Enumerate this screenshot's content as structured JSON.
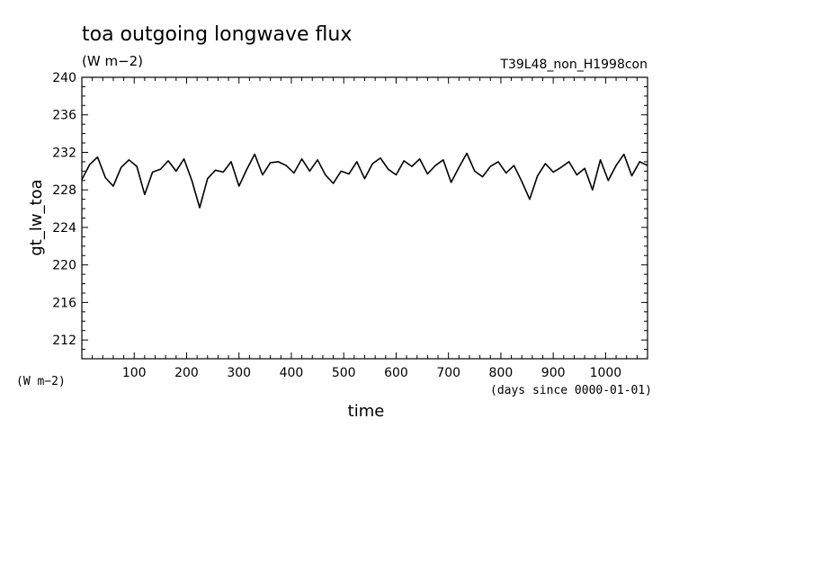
{
  "chart_data": {
    "type": "line",
    "title": "toa outgoing longwave flux",
    "units": "(W m−2)",
    "run_label": "T39L48_non_H1998con",
    "xlabel": "time",
    "x_units": "(days since 0000-01-01)",
    "ylabel": "gt_lw_toa",
    "y_units": "(W m−2)",
    "xlim": [
      0,
      1080
    ],
    "ylim": [
      210,
      240
    ],
    "x_ticks": [
      "100",
      "200",
      "300",
      "400",
      "500",
      "600",
      "700",
      "800",
      "900",
      "1000"
    ],
    "y_ticks": [
      "212",
      "216",
      "220",
      "224",
      "228",
      "232",
      "236",
      "240"
    ],
    "line_color": "#000000",
    "series": [
      {
        "x": [
          0,
          15,
          30,
          45,
          60,
          75,
          90,
          105,
          120,
          135,
          150,
          165,
          180,
          195,
          210,
          225,
          240,
          255,
          270,
          285,
          300,
          315,
          330,
          345,
          360,
          375,
          390,
          405,
          420,
          435,
          450,
          465,
          480,
          495,
          510,
          525,
          540,
          555,
          570,
          585,
          600,
          615,
          630,
          645,
          660,
          675,
          690,
          705,
          720,
          735,
          750,
          765,
          780,
          795,
          810,
          825,
          840,
          855,
          870,
          885,
          900,
          915,
          930,
          945,
          960,
          975,
          990,
          1005,
          1020,
          1035,
          1050,
          1065,
          1080
        ],
        "values": [
          229.1,
          230.7,
          231.5,
          229.3,
          228.4,
          230.4,
          231.2,
          230.5,
          227.5,
          229.9,
          230.2,
          231.1,
          230.0,
          231.3,
          229.0,
          226.1,
          229.2,
          230.1,
          229.9,
          231.0,
          228.4,
          230.2,
          231.8,
          229.6,
          230.9,
          231.0,
          230.6,
          229.8,
          231.3,
          230.0,
          231.2,
          229.6,
          228.7,
          230.0,
          229.7,
          231.0,
          229.2,
          230.8,
          231.4,
          230.2,
          229.6,
          231.1,
          230.5,
          231.3,
          229.7,
          230.6,
          231.2,
          228.8,
          230.4,
          231.9,
          230.0,
          229.4,
          230.5,
          231.0,
          229.8,
          230.6,
          228.9,
          227.0,
          229.5,
          230.8,
          229.9,
          230.4,
          231.0,
          229.6,
          230.3,
          228.0,
          231.2,
          229.0,
          230.6,
          231.8,
          229.5,
          231.0,
          230.6
        ]
      }
    ]
  }
}
